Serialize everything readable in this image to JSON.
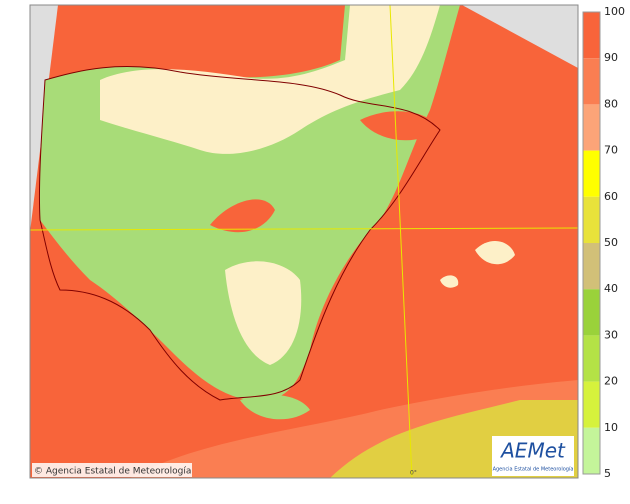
{
  "map": {
    "credit": "© Agencia Estatal de Meteorología",
    "meridian_label": "0°"
  },
  "logo": {
    "name": "AEMet",
    "subtitle": "Agencia Estatal de Meteorología"
  },
  "legend": {
    "ticks": [
      100,
      90,
      80,
      70,
      60,
      50,
      40,
      30,
      20,
      10,
      5
    ],
    "colors": [
      "#f8643a",
      "#fa7e52",
      "#fca478",
      "#ffff00",
      "#e8e23a",
      "#d2c078",
      "#9ad23a",
      "#b4e246",
      "#d6f23c",
      "#c4f59a"
    ]
  }
}
